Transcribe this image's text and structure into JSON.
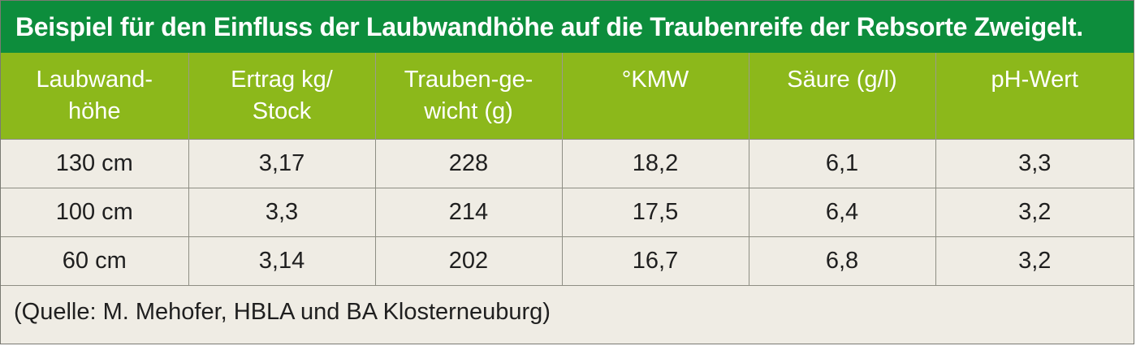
{
  "title": "Beispiel für den Einfluss der Laubwandhöhe auf die Traubenreife der Rebsorte Zweigelt.",
  "headers": [
    {
      "lines": [
        "Laubwand-",
        "höhe"
      ]
    },
    {
      "lines": [
        "Ertrag kg/",
        "Stock"
      ]
    },
    {
      "lines": [
        "Trauben-ge-",
        "wicht (g)"
      ]
    },
    {
      "lines": [
        "°KMW"
      ]
    },
    {
      "lines": [
        "Säure (g/l)"
      ]
    },
    {
      "lines": [
        "pH-Wert"
      ]
    }
  ],
  "rows": [
    [
      "130 cm",
      "3,17",
      "228",
      "18,2",
      "6,1",
      "3,3"
    ],
    [
      "100 cm",
      "3,3",
      "214",
      "17,5",
      "6,4",
      "3,2"
    ],
    [
      "60 cm",
      "3,14",
      "202",
      "16,7",
      "6,8",
      "3,2"
    ]
  ],
  "source": "(Quelle: M. Mehofer, HBLA und BA Klosterneuburg)",
  "colors": {
    "title_bg": "#0d8d3c",
    "header_bg": "#8cb81b",
    "body_bg": "#efece4"
  }
}
